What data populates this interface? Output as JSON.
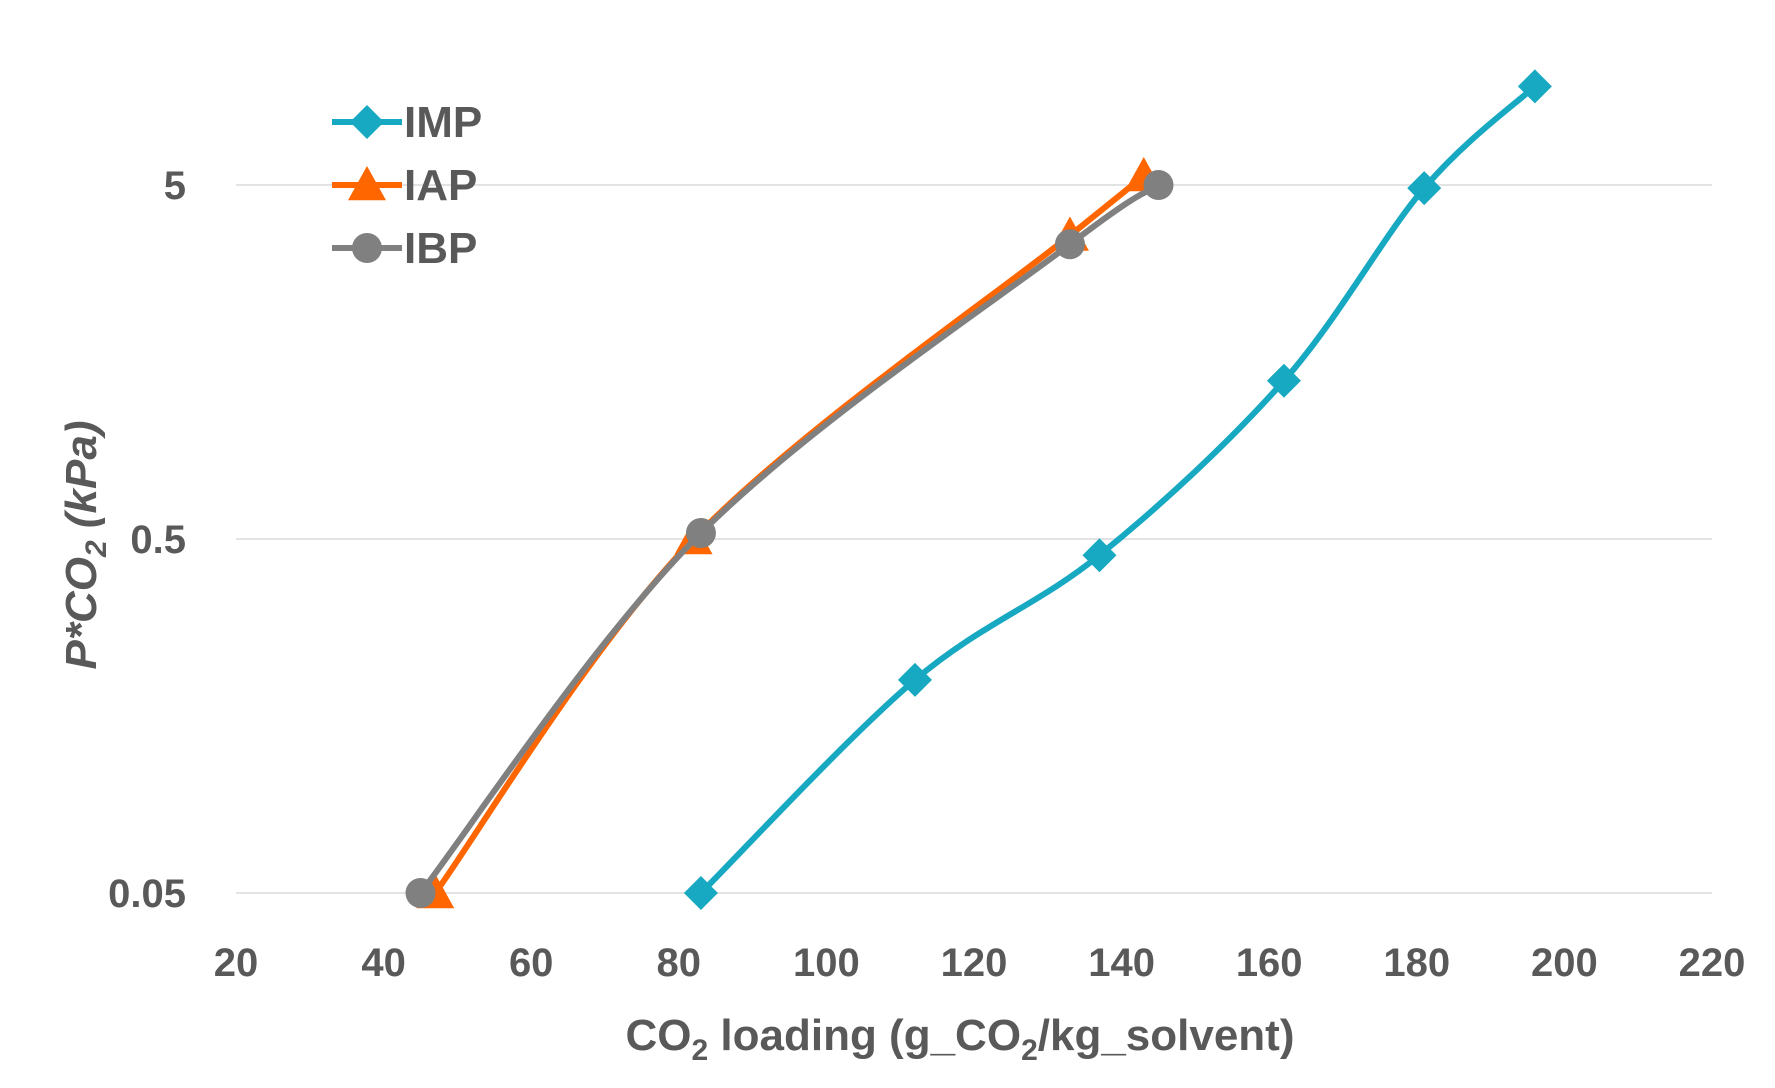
{
  "chart_data": {
    "type": "line",
    "title": "",
    "xlabel": {
      "main": "CO",
      "sub1": "2",
      "mid": " loading (g_CO",
      "sub2": "2",
      "end": "/kg_solvent)"
    },
    "ylabel": {
      "main": "P*",
      "co": "CO",
      "sub": "2",
      "unit": " (kPa)"
    },
    "xlim": [
      20,
      220
    ],
    "x_ticks": [
      20,
      40,
      60,
      80,
      100,
      120,
      140,
      160,
      180,
      200,
      220
    ],
    "y_scale": "log",
    "ylim": [
      0.05,
      10
    ],
    "y_ticks": [
      0.05,
      0.5,
      5
    ],
    "y_tick_labels": [
      "0.05",
      "0.5",
      "5"
    ],
    "grid": true,
    "legend_position": "top-left",
    "series": [
      {
        "name": "IMP",
        "color": "#17A8C2",
        "marker": "diamond",
        "x": [
          83,
          112,
          137,
          162,
          181,
          196
        ],
        "y": [
          0.05,
          0.2,
          0.45,
          1.4,
          4.9,
          9.5
        ]
      },
      {
        "name": "IAP",
        "color": "#FF6600",
        "marker": "triangle",
        "x": [
          47,
          82,
          133,
          143
        ],
        "y": [
          0.05,
          0.5,
          3.6,
          5.3
        ]
      },
      {
        "name": "IBP",
        "color": "#808080",
        "marker": "circle",
        "x": [
          45,
          83,
          133,
          145
        ],
        "y": [
          0.05,
          0.52,
          3.4,
          5.0
        ]
      }
    ]
  }
}
